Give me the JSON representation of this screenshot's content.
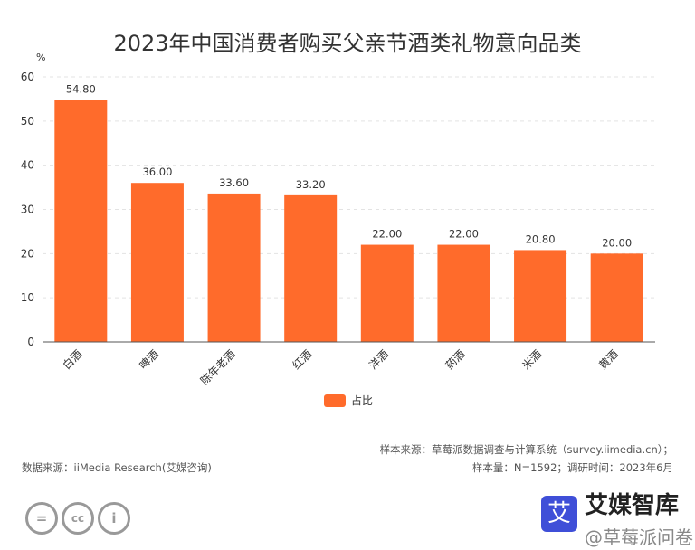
{
  "chart_data": {
    "type": "bar",
    "title": "2023年中国消费者购买父亲节酒类礼物意向品类",
    "ylabel": "%",
    "ylim": [
      0,
      60
    ],
    "yticks": [
      0,
      10,
      20,
      30,
      40,
      50,
      60
    ],
    "grid": true,
    "categories": [
      "白酒",
      "啤酒",
      "陈年老酒",
      "红酒",
      "洋酒",
      "药酒",
      "米酒",
      "黄酒"
    ],
    "series": [
      {
        "name": "占比",
        "values": [
          54.8,
          36.0,
          33.6,
          33.2,
          22.0,
          22.0,
          20.8,
          20.0
        ],
        "color": "#ff6b2b"
      }
    ],
    "data_labels": [
      "54.80",
      "36.00",
      "33.60",
      "33.20",
      "22.00",
      "22.00",
      "20.80",
      "20.00"
    ],
    "legend_position": "bottom"
  },
  "footer": {
    "data_source": "数据来源：iiMedia Research(艾媒咨询)",
    "sample_source": "样本来源：草莓派数据调查与计算系统（survey.iimedia.cn）；",
    "sample_info": "样本量：N=1592；调研时间：2023年6月",
    "logo_text": "艾媒智库",
    "watermark": "@草莓派问卷"
  }
}
